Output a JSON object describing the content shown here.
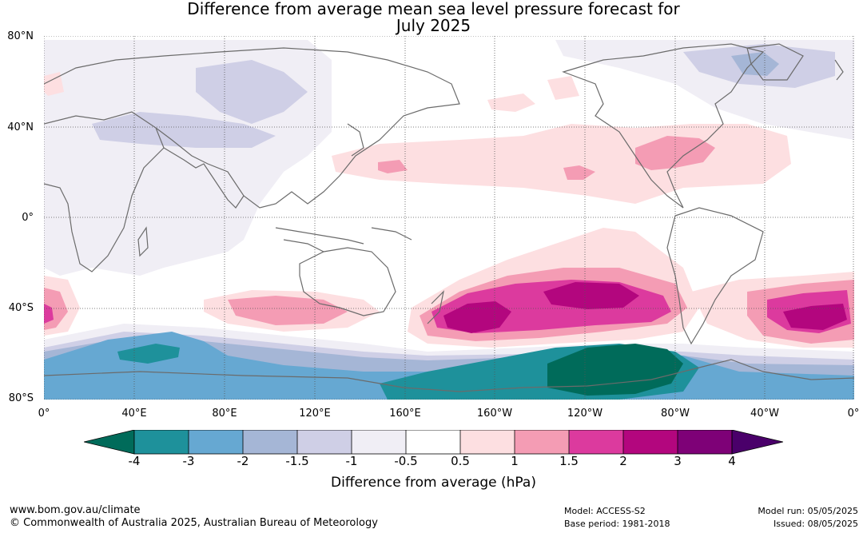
{
  "title_line1": "Difference from average mean sea level pressure forecast for",
  "title_line2": "July 2025",
  "lat_labels": [
    "80°N",
    "40°N",
    "0°",
    "40°S",
    "80°S"
  ],
  "lon_labels": [
    "0°",
    "40°E",
    "80°E",
    "120°E",
    "160°E",
    "160°W",
    "120°W",
    "80°W",
    "40°W",
    "0°"
  ],
  "colorbar": {
    "label": "Difference from average (hPa)",
    "ticks": [
      "-4",
      "-3",
      "-2",
      "-1.5",
      "-1",
      "-0.5",
      "0.5",
      "1",
      "1.5",
      "2",
      "3",
      "4"
    ],
    "colors": {
      "below_-4": "#006b5a",
      "-4_-3": "#1e919b",
      "-3_-2": "#66a8d2",
      "-2_-1.5": "#a5b6d6",
      "-1.5_-1": "#cfcfe6",
      "-1_-0.5": "#f0eef5",
      "-0.5_0.5": "#ffffff",
      "0.5_1": "#fddfe1",
      "1_1.5": "#f49cb4",
      "1.5_2": "#dc3a9e",
      "2_3": "#b3067e",
      "3_4": "#7e0177",
      "above_4": "#4a006a"
    }
  },
  "footer": {
    "website": "www.bom.gov.au/climate",
    "copyright": "© Commonwealth of Australia 2025, Australian Bureau of Meteorology",
    "model": "Model: ACCESS-S2",
    "base_period": "Base period: 1981-2018",
    "model_run": "Model run: 05/05/2025",
    "issued": "Issued: 08/05/2025"
  }
}
